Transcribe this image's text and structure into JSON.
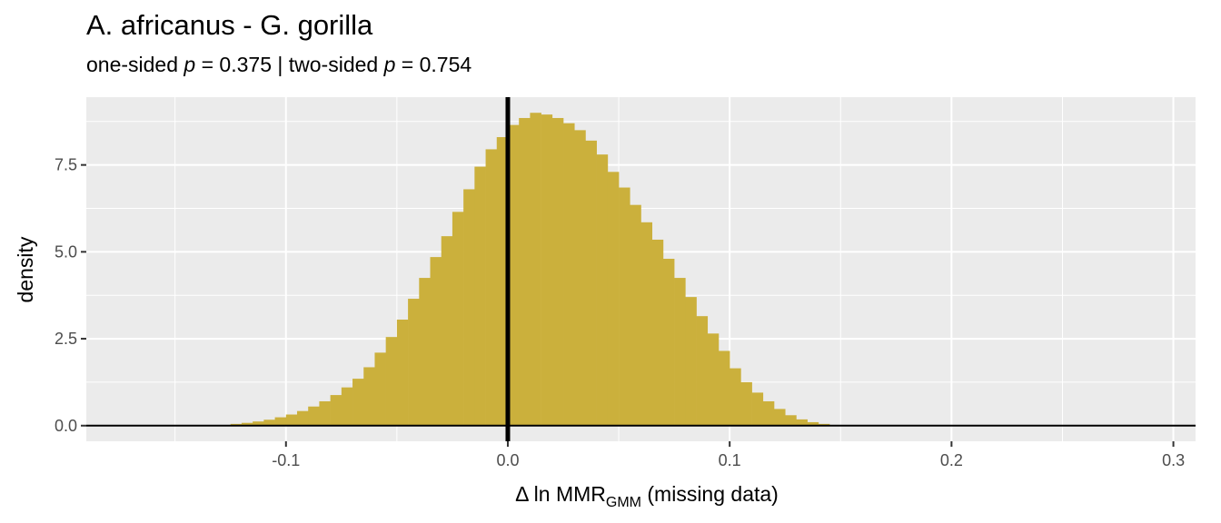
{
  "title": "A. africanus - G. gorilla",
  "subtitle": {
    "one_label": "one-sided",
    "p1": "p",
    "one_value": "= 0.375",
    "sep": "|",
    "two_label": "two-sided",
    "p2": "p",
    "two_value": "= 0.754"
  },
  "chart_data": {
    "type": "bar",
    "title": "A. africanus - G. gorilla",
    "subtitle": "one-sided p = 0.375 | two-sided p = 0.754",
    "xlabel": "Δ ln MMR(GMM) (missing data)",
    "xlabel_parts": {
      "base": "Δ ln MMR",
      "sub": "GMM",
      "tail": " (missing data)"
    },
    "ylabel": "density",
    "xlim": [
      -0.19,
      0.31
    ],
    "ylim": [
      -0.45,
      9.45
    ],
    "x_ticks": [
      -0.1,
      0.0,
      0.1,
      0.2,
      0.3
    ],
    "x_tick_labels": [
      "-0.1",
      "0.0",
      "0.1",
      "0.2",
      "0.3"
    ],
    "y_ticks": [
      0,
      2.5,
      5,
      7.5
    ],
    "y_tick_labels": [
      "0.0",
      "2.5",
      "5.0",
      "7.5"
    ],
    "grid": true,
    "bar_color": "#CBB03C",
    "panel_bg": "#EBEBEB",
    "vline_x": 0,
    "bin_width": 0.005,
    "bins_x": [
      -0.1275,
      -0.1225,
      -0.1175,
      -0.1125,
      -0.1075,
      -0.1025,
      -0.0975,
      -0.0925,
      -0.0875,
      -0.0825,
      -0.0775,
      -0.0725,
      -0.0675,
      -0.0625,
      -0.0575,
      -0.0525,
      -0.0475,
      -0.0425,
      -0.0375,
      -0.0325,
      -0.0275,
      -0.0225,
      -0.0175,
      -0.0125,
      -0.0075,
      -0.0025,
      0.0025,
      0.0075,
      0.0125,
      0.0175,
      0.0225,
      0.0275,
      0.0325,
      0.0375,
      0.0425,
      0.0475,
      0.0525,
      0.0575,
      0.0625,
      0.0675,
      0.0725,
      0.0775,
      0.0825,
      0.0875,
      0.0925,
      0.0975,
      0.1025,
      0.1075,
      0.1125,
      0.1175,
      0.1225,
      0.1275,
      0.1325,
      0.1375,
      0.1425,
      0.1475
    ],
    "density": [
      0.02,
      0.05,
      0.08,
      0.12,
      0.17,
      0.24,
      0.32,
      0.42,
      0.55,
      0.7,
      0.88,
      1.1,
      1.35,
      1.68,
      2.1,
      2.55,
      3.05,
      3.65,
      4.25,
      4.85,
      5.45,
      6.15,
      6.8,
      7.45,
      7.95,
      8.3,
      8.65,
      8.85,
      9.0,
      8.95,
      8.85,
      8.7,
      8.5,
      8.2,
      7.8,
      7.3,
      6.85,
      6.35,
      5.85,
      5.35,
      4.8,
      4.25,
      3.7,
      3.15,
      2.65,
      2.15,
      1.65,
      1.25,
      0.95,
      0.7,
      0.48,
      0.3,
      0.18,
      0.1,
      0.05,
      0.02
    ]
  }
}
